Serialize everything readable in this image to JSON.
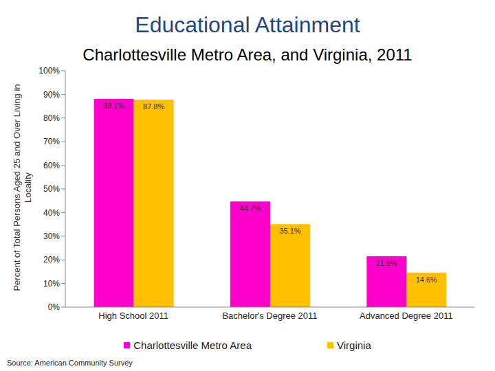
{
  "chart_data": {
    "type": "bar",
    "title": "Educational Attainment",
    "subtitle": "Charlottesville Metro Area, and Virginia, 2011",
    "y_label": "Percent of Total Persons Aged 25 and Over Living in Locality",
    "source": "Source: American Community Survey",
    "categories": [
      "High School 2011",
      "Bachelor's Degree 2011",
      "Advanced Degree 2011"
    ],
    "series": [
      {
        "name": "Charlottesville Metro Area",
        "color": "#ff00cc",
        "values": [
          88.1,
          44.7,
          21.5
        ],
        "value_labels": [
          "88.1%",
          "44.7%",
          "21.5%"
        ]
      },
      {
        "name": "Virginia",
        "color": "#ffc000",
        "values": [
          87.8,
          35.1,
          14.6
        ],
        "value_labels": [
          "87.8%",
          "35.1%",
          "14.6%"
        ]
      }
    ],
    "ylim": [
      0,
      100
    ],
    "yticks": [
      {
        "value": 0,
        "label": "0%"
      },
      {
        "value": 10,
        "label": "10%"
      },
      {
        "value": 20,
        "label": "20%"
      },
      {
        "value": 30,
        "label": "30%"
      },
      {
        "value": 40,
        "label": "40%"
      },
      {
        "value": 50,
        "label": "50%"
      },
      {
        "value": 60,
        "label": "60%"
      },
      {
        "value": 70,
        "label": "70%"
      },
      {
        "value": 80,
        "label": "80%"
      },
      {
        "value": 90,
        "label": "90%"
      },
      {
        "value": 100,
        "label": "100%"
      }
    ],
    "grid": false,
    "legend": "bottom",
    "data_labels": true
  }
}
